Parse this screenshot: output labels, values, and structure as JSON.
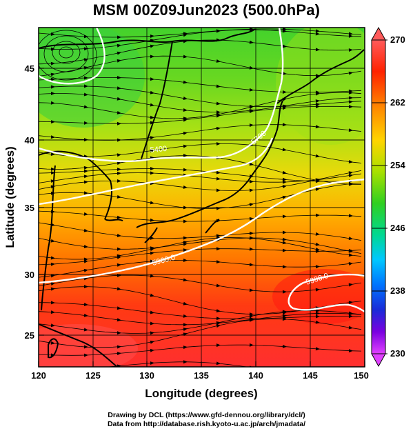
{
  "title": "MSM 00Z09Jun2023 (500.0hPa)",
  "x_axis": {
    "label": "Longitude (degrees)",
    "range": [
      120,
      150
    ],
    "ticks": [
      120,
      125,
      130,
      135,
      140,
      145,
      150
    ]
  },
  "y_axis": {
    "label": "Latitude  (degrees)",
    "range": [
      22.4,
      47.6
    ],
    "ticks": [
      25,
      30,
      35,
      40,
      45
    ]
  },
  "colorbar": {
    "range": [
      230,
      270
    ],
    "tick_labels": [
      "270",
      "262",
      "254",
      "246",
      "238",
      "230"
    ],
    "colors": [
      "#e040ff",
      "#7a00ff",
      "#1f3fff",
      "#00b0ff",
      "#00e0e0",
      "#00d24a",
      "#3bd400",
      "#c6e000",
      "#ffcc00",
      "#ff6a00",
      "#ff2200",
      "#ff5a5a"
    ]
  },
  "contours": [
    {
      "label": "5400",
      "color": "#ffffff"
    },
    {
      "label": "5700",
      "color": "#ffffff"
    },
    {
      "label": "5900.0",
      "color": "#ffffff"
    }
  ],
  "credits": {
    "line1": "Drawing by DCL (https://www.gfd-dennou.org/library/dcl/)",
    "line2": "Data from http://database.rish.kyoto-u.ac.jp/arch/jmadata/"
  }
}
